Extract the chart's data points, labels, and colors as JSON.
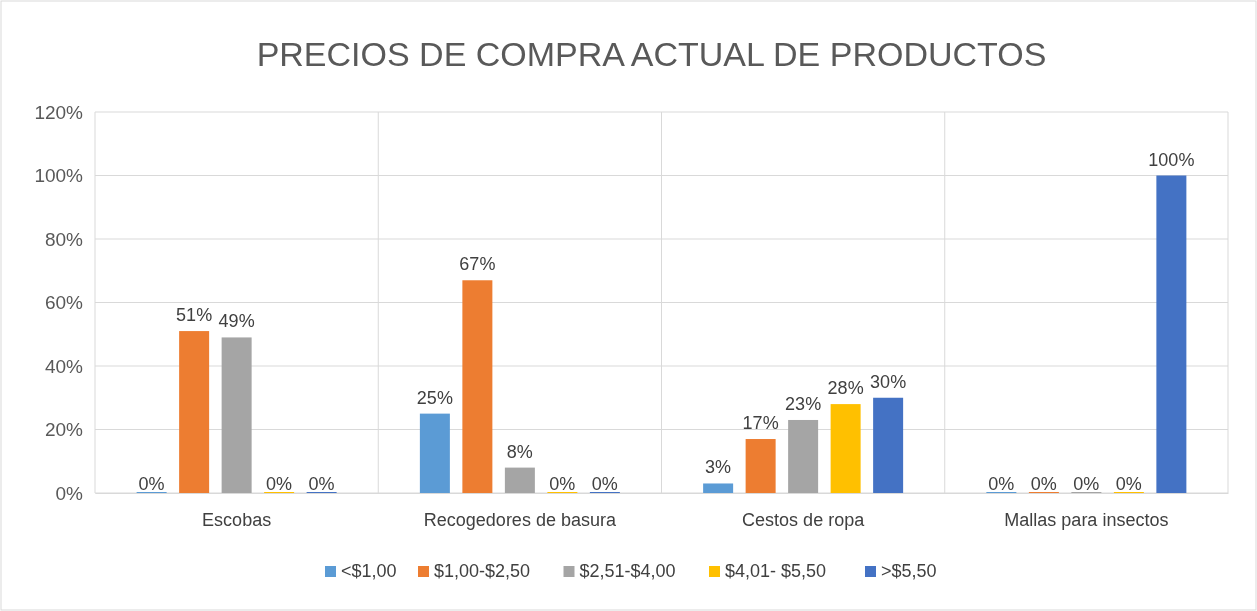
{
  "chart_data": {
    "type": "bar",
    "title": "PRECIOS DE COMPRA ACTUAL  DE PRODUCTOS",
    "categories": [
      "Escobas",
      "Recogedores de basura",
      "Cestos de ropa",
      "Mallas para insectos"
    ],
    "series": [
      {
        "name": "<$1,00",
        "color": "#5b9bd5",
        "values": [
          0,
          25,
          3,
          0
        ],
        "value_labels": [
          "0%",
          "25%",
          "3%",
          "0%"
        ]
      },
      {
        "name": "$1,00-$2,50",
        "color": "#ed7d31",
        "values": [
          51,
          67,
          17,
          0
        ],
        "value_labels": [
          "51%",
          "67%",
          "17%",
          "0%"
        ]
      },
      {
        "name": "$2,51-$4,00",
        "color": "#a5a5a5",
        "values": [
          49,
          8,
          23,
          0
        ],
        "value_labels": [
          "49%",
          "8%",
          "23%",
          "0%"
        ]
      },
      {
        "name": "$4,01- $5,50",
        "color": "#ffc000",
        "values": [
          0,
          0,
          28,
          0
        ],
        "value_labels": [
          "0%",
          "0%",
          "28%",
          "0%"
        ]
      },
      {
        "name": ">$5,50",
        "color": "#4472c4",
        "values": [
          0,
          0,
          30,
          100
        ],
        "value_labels": [
          "0%",
          "0%",
          "30%",
          "100%"
        ]
      }
    ],
    "ylim": [
      0,
      120
    ],
    "yticks": [
      {
        "value": 0,
        "label": "0%"
      },
      {
        "value": 20,
        "label": "20%"
      },
      {
        "value": 40,
        "label": "40%"
      },
      {
        "value": 60,
        "label": "60%"
      },
      {
        "value": 80,
        "label": "80%"
      },
      {
        "value": 100,
        "label": "100%"
      },
      {
        "value": 120,
        "label": "120%"
      }
    ],
    "grid": true,
    "legend": "bottom"
  }
}
